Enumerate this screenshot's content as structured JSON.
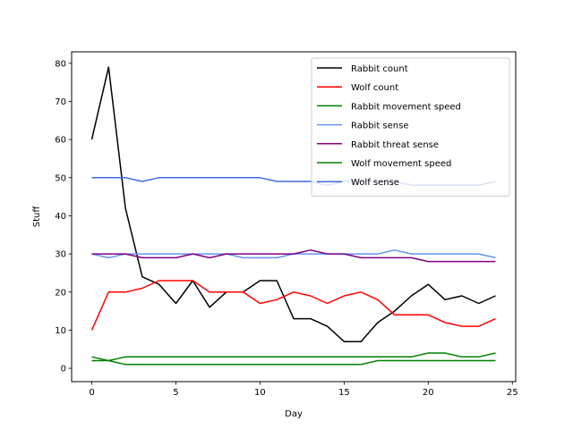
{
  "chart_data": {
    "type": "line",
    "title": "",
    "xlabel": "Day",
    "ylabel": "Stuff",
    "xlim": [
      -1.2,
      25.2
    ],
    "ylim": [
      -3.5,
      83
    ],
    "xticks": [
      0,
      5,
      10,
      15,
      20,
      25
    ],
    "yticks": [
      0,
      10,
      20,
      30,
      40,
      50,
      60,
      70,
      80
    ],
    "grid": false,
    "legend_position": "upper right",
    "x": [
      0,
      1,
      2,
      3,
      4,
      5,
      6,
      7,
      8,
      9,
      10,
      11,
      12,
      13,
      14,
      15,
      16,
      17,
      18,
      19,
      20,
      21,
      22,
      23,
      24
    ],
    "series": [
      {
        "name": "Rabbit count",
        "color": "#000000",
        "values": [
          60,
          79,
          42,
          24,
          22,
          17,
          23,
          16,
          20,
          20,
          23,
          23,
          13,
          13,
          11,
          7,
          7,
          12,
          15,
          19,
          22,
          18,
          19,
          17,
          19
        ]
      },
      {
        "name": "Wolf count",
        "color": "#ff0000",
        "values": [
          10,
          20,
          20,
          21,
          23,
          23,
          23,
          20,
          20,
          20,
          17,
          18,
          20,
          19,
          17,
          19,
          20,
          18,
          14,
          14,
          14,
          12,
          11,
          11,
          13
        ]
      },
      {
        "name": "Rabbit movement speed",
        "color": "#008000",
        "values": [
          3,
          2,
          3,
          3,
          3,
          3,
          3,
          3,
          3,
          3,
          3,
          3,
          3,
          3,
          3,
          3,
          3,
          3,
          3,
          3,
          4,
          4,
          3,
          3,
          4
        ]
      },
      {
        "name": "Rabbit sense",
        "color": "#6495ed",
        "values": [
          30,
          29,
          30,
          30,
          30,
          30,
          30,
          30,
          30,
          29,
          29,
          29,
          30,
          30,
          30,
          30,
          30,
          30,
          31,
          30,
          30,
          30,
          30,
          30,
          29
        ]
      },
      {
        "name": "Rabbit threat sense",
        "color": "#800080",
        "values": [
          30,
          30,
          30,
          29,
          29,
          29,
          30,
          29,
          30,
          30,
          30,
          30,
          30,
          31,
          30,
          30,
          29,
          29,
          29,
          29,
          28,
          28,
          28,
          28,
          28
        ]
      },
      {
        "name": "Wolf movement speed",
        "color": "#008000",
        "values": [
          2,
          2,
          1,
          1,
          1,
          1,
          1,
          1,
          1,
          1,
          1,
          1,
          1,
          1,
          1,
          1,
          1,
          2,
          2,
          2,
          2,
          2,
          2,
          2,
          2
        ]
      },
      {
        "name": "Wolf sense",
        "color": "#4169e1",
        "values": [
          50,
          50,
          50,
          49,
          50,
          50,
          50,
          50,
          50,
          50,
          50,
          49,
          49,
          49,
          48,
          49,
          49,
          49,
          49,
          48,
          48,
          48,
          48,
          48,
          49
        ]
      }
    ]
  }
}
